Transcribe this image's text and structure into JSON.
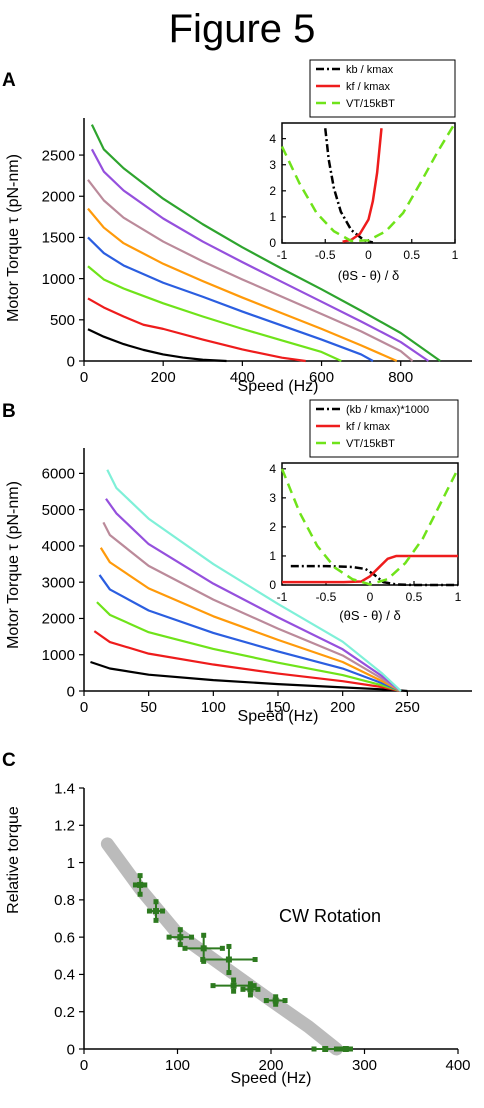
{
  "figure_title": "Figure 5",
  "chart_data": [
    {
      "panel": "A",
      "type": "line",
      "xlabel": "Speed (Hz)",
      "ylabel": "Motor Torque τ (pN-nm)",
      "xlim": [
        0,
        980
      ],
      "ylim": [
        0,
        2950
      ],
      "xticks": [
        0,
        200,
        400,
        600,
        800
      ],
      "yticks": [
        0,
        500,
        1000,
        1500,
        2000,
        2500
      ],
      "grid": false,
      "series": [
        {
          "color": "#000000",
          "x": [
            10,
            50,
            100,
            150,
            200,
            250,
            300,
            360
          ],
          "y": [
            385,
            295,
            205,
            135,
            80,
            42,
            15,
            0
          ]
        },
        {
          "color": "#ee1c1c",
          "x": [
            10,
            50,
            100,
            150,
            200,
            300,
            400,
            500,
            560
          ],
          "y": [
            760,
            650,
            540,
            440,
            390,
            260,
            140,
            40,
            0
          ]
        },
        {
          "color": "#6fe31a",
          "x": [
            10,
            50,
            100,
            200,
            300,
            400,
            500,
            600,
            650
          ],
          "y": [
            1150,
            990,
            880,
            700,
            540,
            390,
            250,
            110,
            0
          ]
        },
        {
          "color": "#2b5ee0",
          "x": [
            10,
            50,
            100,
            200,
            300,
            400,
            500,
            600,
            700,
            730
          ],
          "y": [
            1500,
            1310,
            1160,
            950,
            780,
            600,
            430,
            260,
            80,
            0
          ]
        },
        {
          "color": "#ff9a0a",
          "x": [
            10,
            50,
            100,
            200,
            300,
            400,
            500,
            600,
            700,
            790
          ],
          "y": [
            1850,
            1620,
            1430,
            1180,
            970,
            770,
            580,
            390,
            190,
            0
          ]
        },
        {
          "color": "#bb8a9a",
          "x": [
            10,
            50,
            100,
            200,
            300,
            400,
            500,
            600,
            700,
            800,
            830
          ],
          "y": [
            2200,
            1950,
            1740,
            1450,
            1210,
            990,
            780,
            570,
            360,
            120,
            0
          ]
        },
        {
          "color": "#9550dd",
          "x": [
            20,
            50,
            100,
            200,
            300,
            400,
            500,
            600,
            700,
            800,
            870
          ],
          "y": [
            2570,
            2300,
            2070,
            1730,
            1450,
            1200,
            960,
            720,
            480,
            230,
            0
          ]
        },
        {
          "color": "#2ea42e",
          "x": [
            20,
            50,
            100,
            200,
            300,
            400,
            500,
            600,
            700,
            800,
            900
          ],
          "y": [
            2870,
            2570,
            2340,
            1970,
            1660,
            1380,
            1120,
            870,
            610,
            340,
            0
          ]
        }
      ]
    },
    {
      "panel": "A-inset",
      "type": "line",
      "xlabel": "(θS - θ) / δ",
      "ylabel": "",
      "xlim": [
        -1,
        1
      ],
      "ylim": [
        0,
        4.6
      ],
      "xticks": [
        -1,
        -0.5,
        0,
        0.5,
        1
      ],
      "yticks": [
        0,
        1,
        2,
        3,
        4
      ],
      "legend_position": "top-right",
      "series": [
        {
          "name": "kb / kmax",
          "color": "#000000",
          "dash": "dashdot",
          "x": [
            -0.5,
            -0.46,
            -0.4,
            -0.32,
            -0.2,
            -0.05,
            0.05
          ],
          "y": [
            4.4,
            3.2,
            2.1,
            1.2,
            0.5,
            0.1,
            0.02
          ]
        },
        {
          "name": "kf / kmax",
          "color": "#ee1c1c",
          "dash": "solid",
          "x": [
            -0.3,
            -0.2,
            -0.1,
            0.0,
            0.05,
            0.1,
            0.15
          ],
          "y": [
            0.05,
            0.12,
            0.35,
            0.9,
            1.6,
            2.7,
            4.4
          ]
        },
        {
          "name": "VT/15kBT",
          "color": "#6fe31a",
          "dash": "dashed",
          "x": [
            -1,
            -0.8,
            -0.6,
            -0.4,
            -0.2,
            0.0,
            0.2,
            0.4,
            0.6,
            0.8,
            1.0
          ],
          "y": [
            3.7,
            2.3,
            1.15,
            0.45,
            0.08,
            0.1,
            0.45,
            1.15,
            2.3,
            3.5,
            4.6
          ]
        }
      ]
    },
    {
      "panel": "B",
      "type": "line",
      "xlabel": "Speed (Hz)",
      "ylabel": "Motor Torque τ (pN-nm)",
      "xlim": [
        0,
        300
      ],
      "ylim": [
        0,
        6700
      ],
      "xticks": [
        0,
        50,
        100,
        150,
        200,
        250
      ],
      "yticks": [
        0,
        1000,
        2000,
        3000,
        4000,
        5000,
        6000
      ],
      "grid": false,
      "series": [
        {
          "color": "#000000",
          "x": [
            5,
            20,
            50,
            100,
            150,
            200,
            240,
            250
          ],
          "y": [
            800,
            620,
            450,
            300,
            190,
            100,
            30,
            0
          ]
        },
        {
          "color": "#ee1c1c",
          "x": [
            8,
            20,
            50,
            100,
            150,
            200,
            230,
            245
          ],
          "y": [
            1650,
            1350,
            1030,
            730,
            480,
            270,
            110,
            0
          ]
        },
        {
          "color": "#6fe31a",
          "x": [
            10,
            20,
            50,
            100,
            150,
            200,
            230,
            245
          ],
          "y": [
            2450,
            2100,
            1620,
            1160,
            780,
            440,
            160,
            0
          ]
        },
        {
          "color": "#2b5ee0",
          "x": [
            12,
            20,
            50,
            100,
            150,
            200,
            230,
            245
          ],
          "y": [
            3200,
            2800,
            2220,
            1600,
            1090,
            620,
            220,
            0
          ]
        },
        {
          "color": "#ff9a0a",
          "x": [
            13,
            20,
            50,
            100,
            150,
            200,
            230,
            245
          ],
          "y": [
            3950,
            3550,
            2830,
            2060,
            1410,
            800,
            280,
            0
          ]
        },
        {
          "color": "#bb8a9a",
          "x": [
            15,
            20,
            50,
            100,
            150,
            200,
            230,
            245
          ],
          "y": [
            4650,
            4300,
            3450,
            2520,
            1720,
            980,
            350,
            0
          ]
        },
        {
          "color": "#9550dd",
          "x": [
            17,
            25,
            50,
            100,
            150,
            200,
            230,
            245
          ],
          "y": [
            5300,
            4900,
            4050,
            2960,
            2030,
            1150,
            420,
            0
          ]
        },
        {
          "color": "#7ff0d8",
          "x": [
            18,
            25,
            50,
            100,
            150,
            200,
            230,
            245
          ],
          "y": [
            6100,
            5600,
            4750,
            3500,
            2400,
            1360,
            500,
            0
          ]
        }
      ]
    },
    {
      "panel": "B-inset",
      "type": "line",
      "xlabel": "(θS - θ) / δ",
      "ylabel": "",
      "xlim": [
        -1,
        1
      ],
      "ylim": [
        0,
        4.2
      ],
      "xticks": [
        -1,
        -0.5,
        0,
        0.5,
        1
      ],
      "yticks": [
        0,
        1,
        2,
        3,
        4
      ],
      "legend_position": "top-right",
      "series": [
        {
          "name": "(kb / kmax)*1000",
          "color": "#000000",
          "dash": "dashdot",
          "x": [
            -0.9,
            -0.5,
            -0.2,
            -0.05,
            0.05,
            0.15,
            0.3,
            0.5,
            1.0
          ],
          "y": [
            0.65,
            0.65,
            0.62,
            0.55,
            0.35,
            0.1,
            0.02,
            0.0,
            0.0
          ]
        },
        {
          "name": "kf / kmax",
          "color": "#ee1c1c",
          "dash": "solid",
          "x": [
            -1.0,
            -0.3,
            -0.1,
            0.0,
            0.1,
            0.2,
            0.3,
            0.5,
            1.0
          ],
          "y": [
            0.1,
            0.1,
            0.12,
            0.3,
            0.6,
            0.9,
            1.0,
            1.0,
            1.0
          ]
        },
        {
          "name": "VT/15kBT",
          "color": "#6fe31a",
          "dash": "dashed",
          "x": [
            -1,
            -0.8,
            -0.6,
            -0.4,
            -0.2,
            0.0,
            0.2,
            0.4,
            0.6,
            0.8,
            1.0
          ],
          "y": [
            4.0,
            2.5,
            1.35,
            0.6,
            0.2,
            0.02,
            0.2,
            0.75,
            1.6,
            2.8,
            4.0
          ]
        }
      ]
    },
    {
      "panel": "C",
      "type": "scatter",
      "xlabel": "Speed (Hz)",
      "ylabel": "Relative torque",
      "annotation": "CW Rotation",
      "xlim": [
        0,
        400
      ],
      "ylim": [
        0,
        1.4
      ],
      "xticks": [
        0,
        100,
        200,
        300,
        400
      ],
      "yticks": [
        0,
        0.2,
        0.4,
        0.6,
        0.8,
        1,
        1.2,
        1.4
      ],
      "grid": false,
      "band": {
        "color": "#bbbbbb",
        "x": [
          25,
          60,
          100,
          150,
          200,
          240,
          270
        ],
        "y": [
          1.1,
          0.86,
          0.62,
          0.44,
          0.26,
          0.12,
          0.0
        ]
      },
      "points": [
        {
          "x": 60,
          "y": 0.88,
          "xerr": 5,
          "yerr": 0.05
        },
        {
          "x": 77,
          "y": 0.74,
          "xerr": 7,
          "yerr": 0.05
        },
        {
          "x": 103,
          "y": 0.6,
          "xerr": 12,
          "yerr": 0.04
        },
        {
          "x": 128,
          "y": 0.54,
          "xerr": 20,
          "yerr": 0.07
        },
        {
          "x": 155,
          "y": 0.48,
          "xerr": 28,
          "yerr": 0.07
        },
        {
          "x": 160,
          "y": 0.34,
          "xerr": 22,
          "yerr": 0.03
        },
        {
          "x": 178,
          "y": 0.32,
          "xerr": 8,
          "yerr": 0.03
        },
        {
          "x": 205,
          "y": 0.26,
          "xerr": 10,
          "yerr": 0.02
        },
        {
          "x": 258,
          "y": 0.0,
          "xerr": 12,
          "yerr": 0.0
        },
        {
          "x": 280,
          "y": 0.0,
          "xerr": 5,
          "yerr": 0.0
        }
      ]
    }
  ],
  "panel_labels": [
    "A",
    "B",
    "C"
  ],
  "colors": {
    "text": "#000000",
    "point": "#2d7a1f",
    "band": "#bbbbbb"
  }
}
